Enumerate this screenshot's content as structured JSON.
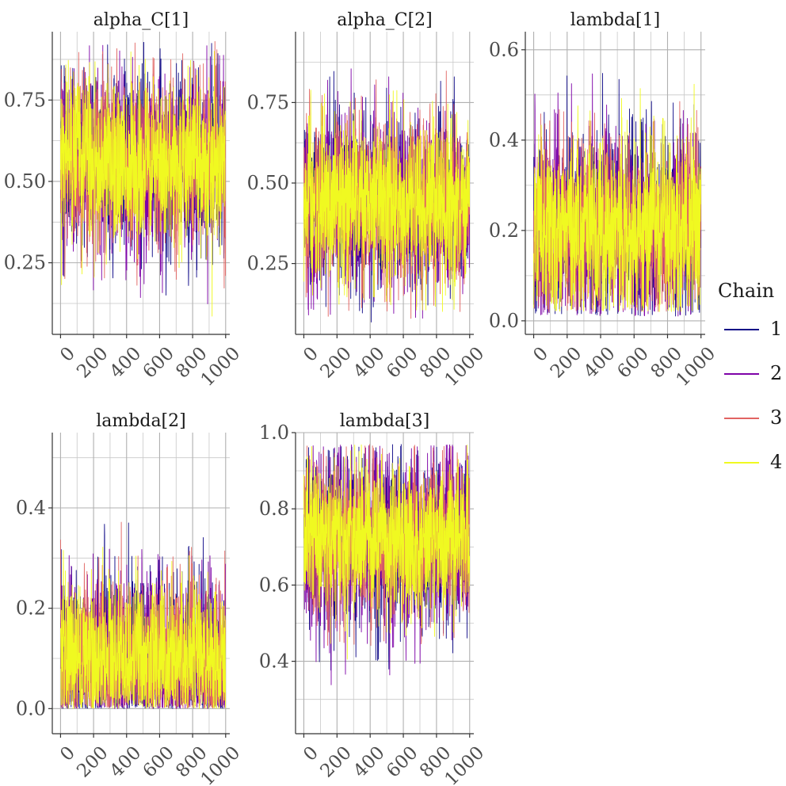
{
  "chart_data": {
    "type": "line",
    "figure": "MCMC trace plots",
    "legend": {
      "title": "Chain",
      "position": "right",
      "entries": [
        {
          "label": "1",
          "color": "#0d0887"
        },
        {
          "label": "2",
          "color": "#7e03a8"
        },
        {
          "label": "3",
          "color": "#e16462"
        },
        {
          "label": "4",
          "color": "#f0f921"
        }
      ]
    },
    "panels": [
      {
        "id": "alpha-c-1",
        "title": "alpha_C[1]",
        "xlim": [
          -50,
          1025
        ],
        "ylim": [
          0.03,
          0.96
        ],
        "x_ticks": [
          0,
          200,
          400,
          600,
          800,
          1000
        ],
        "y_ticks": [
          0.25,
          0.5,
          0.75
        ],
        "y_tick_labels": [
          "0.25",
          "0.50",
          "0.75"
        ],
        "grid": true,
        "iterations": 1000,
        "series": [
          {
            "chain": "1",
            "mean": 0.56,
            "sd": 0.13,
            "min": 0.15,
            "max": 0.93
          },
          {
            "chain": "2",
            "mean": 0.56,
            "sd": 0.13,
            "min": 0.12,
            "max": 0.92
          },
          {
            "chain": "3",
            "mean": 0.56,
            "sd": 0.13,
            "min": 0.17,
            "max": 0.93
          },
          {
            "chain": "4",
            "mean": 0.56,
            "sd": 0.12,
            "min": 0.06,
            "max": 0.92
          }
        ]
      },
      {
        "id": "alpha-c-2",
        "title": "alpha_C[2]",
        "xlim": [
          -50,
          1025
        ],
        "ylim": [
          0.03,
          0.97
        ],
        "x_ticks": [
          0,
          200,
          400,
          600,
          800,
          1000
        ],
        "y_ticks": [
          0.25,
          0.5,
          0.75
        ],
        "y_tick_labels": [
          "0.25",
          "0.50",
          "0.75"
        ],
        "grid": true,
        "iterations": 1000,
        "series": [
          {
            "chain": "1",
            "mean": 0.44,
            "sd": 0.13,
            "min": 0.06,
            "max": 0.85
          },
          {
            "chain": "2",
            "mean": 0.44,
            "sd": 0.13,
            "min": 0.08,
            "max": 0.86
          },
          {
            "chain": "3",
            "mean": 0.44,
            "sd": 0.13,
            "min": 0.07,
            "max": 0.85
          },
          {
            "chain": "4",
            "mean": 0.44,
            "sd": 0.12,
            "min": 0.1,
            "max": 0.94
          }
        ]
      },
      {
        "id": "lambda-1",
        "title": "lambda[1]",
        "xlim": [
          -50,
          1025
        ],
        "ylim": [
          -0.03,
          0.64
        ],
        "x_ticks": [
          0,
          200,
          400,
          600,
          800,
          1000
        ],
        "y_ticks": [
          0,
          0.2,
          0.4,
          0.6
        ],
        "y_tick_labels": [
          "0.0",
          "0.2",
          "0.4",
          "0.6"
        ],
        "grid": true,
        "iterations": 1000,
        "series": [
          {
            "chain": "1",
            "mean": 0.21,
            "sd": 0.1,
            "min": 0.01,
            "max": 0.62
          },
          {
            "chain": "2",
            "mean": 0.21,
            "sd": 0.1,
            "min": 0.01,
            "max": 0.62
          },
          {
            "chain": "3",
            "mean": 0.21,
            "sd": 0.1,
            "min": 0.02,
            "max": 0.6
          },
          {
            "chain": "4",
            "mean": 0.21,
            "sd": 0.1,
            "min": 0.02,
            "max": 0.6
          }
        ]
      },
      {
        "id": "lambda-2",
        "title": "lambda[2]",
        "xlim": [
          -50,
          1025
        ],
        "ylim": [
          -0.05,
          0.55
        ],
        "x_ticks": [
          0,
          200,
          400,
          600,
          800,
          1000
        ],
        "y_ticks": [
          0,
          0.2,
          0.4
        ],
        "y_tick_labels": [
          "0.0",
          "0.2",
          "0.4"
        ],
        "grid": true,
        "iterations": 1000,
        "series": [
          {
            "chain": "1",
            "mean": 0.1,
            "sd": 0.08,
            "min": 0.0,
            "max": 0.49
          },
          {
            "chain": "2",
            "mean": 0.1,
            "sd": 0.08,
            "min": 0.0,
            "max": 0.5
          },
          {
            "chain": "3",
            "mean": 0.1,
            "sd": 0.08,
            "min": 0.0,
            "max": 0.46
          },
          {
            "chain": "4",
            "mean": 0.1,
            "sd": 0.07,
            "min": 0.0,
            "max": 0.54
          }
        ]
      },
      {
        "id": "lambda-3",
        "title": "lambda[3]",
        "xlim": [
          -50,
          1025
        ],
        "ylim": [
          0.21,
          1.0
        ],
        "x_ticks": [
          0,
          200,
          400,
          600,
          800,
          1000
        ],
        "y_ticks": [
          0.4,
          0.6,
          0.8,
          1.0
        ],
        "y_tick_labels": [
          "0.4",
          "0.6",
          "0.8",
          "1.0"
        ],
        "grid": true,
        "iterations": 1000,
        "series": [
          {
            "chain": "1",
            "mean": 0.72,
            "sd": 0.11,
            "min": 0.3,
            "max": 0.97
          },
          {
            "chain": "2",
            "mean": 0.72,
            "sd": 0.11,
            "min": 0.33,
            "max": 0.97
          },
          {
            "chain": "3",
            "mean": 0.72,
            "sd": 0.1,
            "min": 0.28,
            "max": 0.97
          },
          {
            "chain": "4",
            "mean": 0.72,
            "sd": 0.09,
            "min": 0.24,
            "max": 0.97
          }
        ]
      }
    ]
  }
}
